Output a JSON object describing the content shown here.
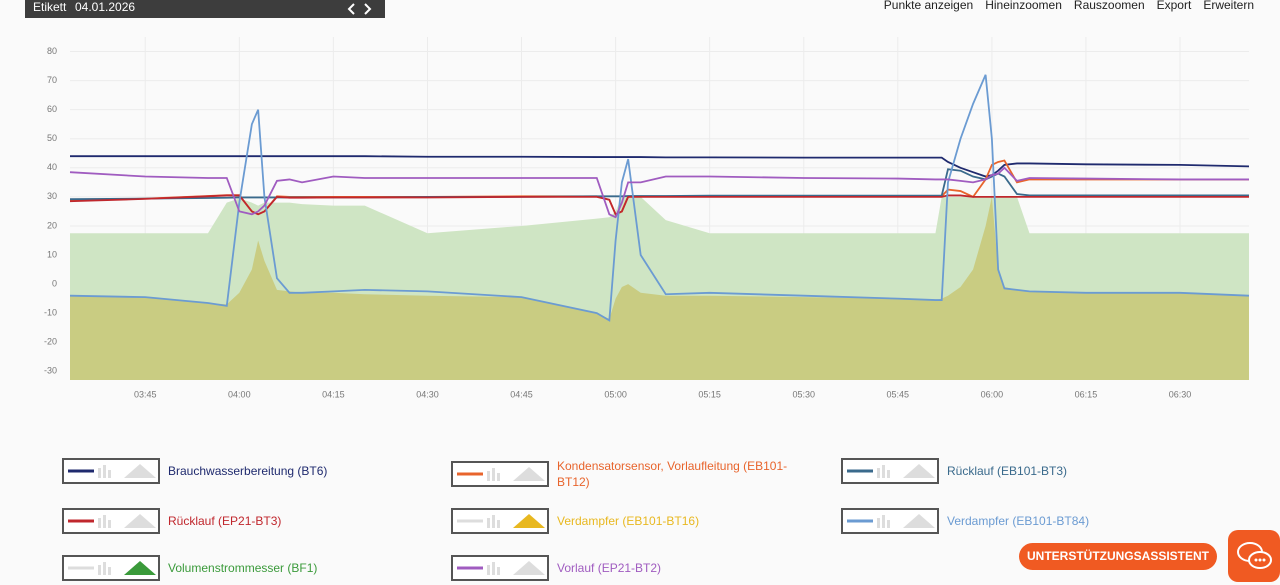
{
  "toolbar": {
    "label": "Etikett",
    "date": "04.01.2026",
    "links": [
      "Punkte anzeigen",
      "Hineinzoomen",
      "Rauszoomen",
      "Export",
      "Erweitern"
    ]
  },
  "assistant_button": "UNTERSTÜTZUNGSASSISTENT",
  "chart_data": {
    "type": "line",
    "grid": true,
    "xlim": [
      "03:33",
      "06:41"
    ],
    "xticks": [
      "03:45",
      "04:00",
      "04:15",
      "04:30",
      "04:45",
      "05:00",
      "05:15",
      "05:30",
      "05:45",
      "06:00",
      "06:15",
      "06:30"
    ],
    "ylim": [
      -33,
      85
    ],
    "yticks": [
      80,
      70,
      60,
      50,
      40,
      30,
      20,
      10,
      0,
      -10,
      -20,
      -30
    ],
    "x": [
      "03:33",
      "03:45",
      "03:55",
      "03:58",
      "04:00",
      "04:02",
      "04:03",
      "04:04",
      "04:06",
      "04:08",
      "04:10",
      "04:15",
      "04:20",
      "04:30",
      "04:45",
      "04:57",
      "04:59",
      "05:00",
      "05:01",
      "05:02",
      "05:04",
      "05:08",
      "05:15",
      "05:30",
      "05:45",
      "05:51",
      "05:52",
      "05:53",
      "05:55",
      "05:57",
      "05:59",
      "06:00",
      "06:01",
      "06:02",
      "06:04",
      "06:06",
      "06:15",
      "06:30",
      "06:41"
    ],
    "series": [
      {
        "name": "Brauchwasserbereitung (BT6)",
        "color": "#1f2a6e",
        "style": "line",
        "values": [
          44,
          44,
          44,
          44,
          44,
          44,
          44,
          44,
          44,
          44,
          44,
          44,
          44,
          43.8,
          43.8,
          43.7,
          43.7,
          43.7,
          43.7,
          43.7,
          43.7,
          43.6,
          43.6,
          43.5,
          43.5,
          43.5,
          43.5,
          42,
          40,
          38.5,
          37,
          37.5,
          39,
          41,
          41.5,
          41.5,
          41.2,
          41,
          40.5
        ]
      },
      {
        "name": "Kondensatorsensor, Vorlaufleitung (EB101-BT12)",
        "color": "#e8642c",
        "style": "line",
        "values": [
          28.7,
          29.4,
          30.3,
          30.6,
          30.6,
          25,
          24,
          25,
          30.2,
          30,
          30,
          30,
          30,
          30,
          30.2,
          30.2,
          29,
          24,
          25,
          30.2,
          30.2,
          30.2,
          30.2,
          30.2,
          30.2,
          30.2,
          30.2,
          32.5,
          32,
          30,
          36,
          41,
          42,
          42.5,
          35,
          36,
          36,
          36,
          36
        ]
      },
      {
        "name": "Rücklauf (EB101-BT3)",
        "color": "#3a6a8c",
        "style": "line",
        "values": [
          29.2,
          29.4,
          29.6,
          29.7,
          29.8,
          29.8,
          29.8,
          29.8,
          29.8,
          29.8,
          29.8,
          29.8,
          29.8,
          30,
          30,
          30.2,
          30.2,
          30.2,
          30.2,
          30.3,
          30.3,
          30.3,
          30.4,
          30.4,
          30.4,
          30.4,
          30.4,
          39.5,
          39,
          37,
          36,
          37,
          38,
          37,
          31,
          30.5,
          30.5,
          30.5,
          30.5
        ]
      },
      {
        "name": "Rücklauf (EP21-BT3)",
        "color": "#c0272d",
        "style": "line",
        "values": [
          28.5,
          29.3,
          30.2,
          30.5,
          30.5,
          25,
          24,
          25,
          30,
          29.7,
          29.7,
          29.8,
          29.8,
          29.8,
          30,
          30,
          29,
          24,
          25,
          30,
          30,
          30,
          30,
          30,
          30,
          30,
          30,
          30.5,
          30.5,
          30,
          30,
          30,
          30,
          30,
          30,
          30,
          30,
          30,
          30
        ]
      },
      {
        "name": "Verdampfer (EB101-BT16)",
        "color": "#e8b820",
        "fill": "#c9cc82",
        "style": "area",
        "values": [
          -4,
          -4.5,
          -6.5,
          -7,
          -3,
          5,
          15,
          8,
          -2,
          -2.5,
          -3,
          -3,
          -3.5,
          -4,
          -4.5,
          -10,
          -12,
          -5,
          -1,
          0,
          -3,
          -4,
          -4,
          -4.5,
          -5,
          -5.5,
          -5,
          -4,
          -1,
          5,
          20,
          30,
          5,
          -1,
          -2,
          -2.5,
          -3,
          -3,
          -4
        ]
      },
      {
        "name": "Verdampfer (EB101-BT84)",
        "color": "#6b9bd2",
        "style": "line",
        "values": [
          -4,
          -4.5,
          -6.5,
          -7.5,
          28,
          55,
          60,
          30,
          2,
          -3,
          -3,
          -2.5,
          -2,
          -2.5,
          -4.5,
          -10,
          -12.5,
          15,
          35,
          43,
          10,
          -3.5,
          -3,
          -4,
          -5,
          -5.5,
          -5.5,
          35,
          50,
          62,
          72,
          50,
          5,
          -1.5,
          -2,
          -2.5,
          -3,
          -3,
          -4
        ]
      },
      {
        "name": "Volumenstrommesser (BF1)",
        "color": "#3a9a3a",
        "fill": "#cfe5c4",
        "style": "area",
        "values": [
          17.5,
          17.5,
          17.5,
          28,
          29.5,
          28,
          27,
          28,
          28,
          28,
          27.5,
          27,
          27,
          17.5,
          20,
          22.5,
          23,
          25,
          30,
          30,
          30,
          22,
          17.5,
          17.5,
          17.5,
          17.5,
          30,
          30,
          30,
          30,
          30,
          30,
          30,
          30,
          30,
          17.5,
          17.5,
          17.5,
          17.5
        ]
      },
      {
        "name": "Vorlauf (EP21-BT2)",
        "color": "#a05cc0",
        "style": "line",
        "values": [
          38.5,
          37,
          36.5,
          36.5,
          25,
          24,
          25,
          27,
          35.5,
          36,
          35,
          37,
          36.5,
          36.5,
          36.5,
          36.5,
          24,
          23,
          28,
          35,
          35,
          37,
          37,
          36.5,
          36.3,
          36,
          36,
          36,
          35.5,
          35,
          36,
          37.5,
          38,
          40,
          35.5,
          36.5,
          36.3,
          36,
          36
        ]
      }
    ]
  }
}
